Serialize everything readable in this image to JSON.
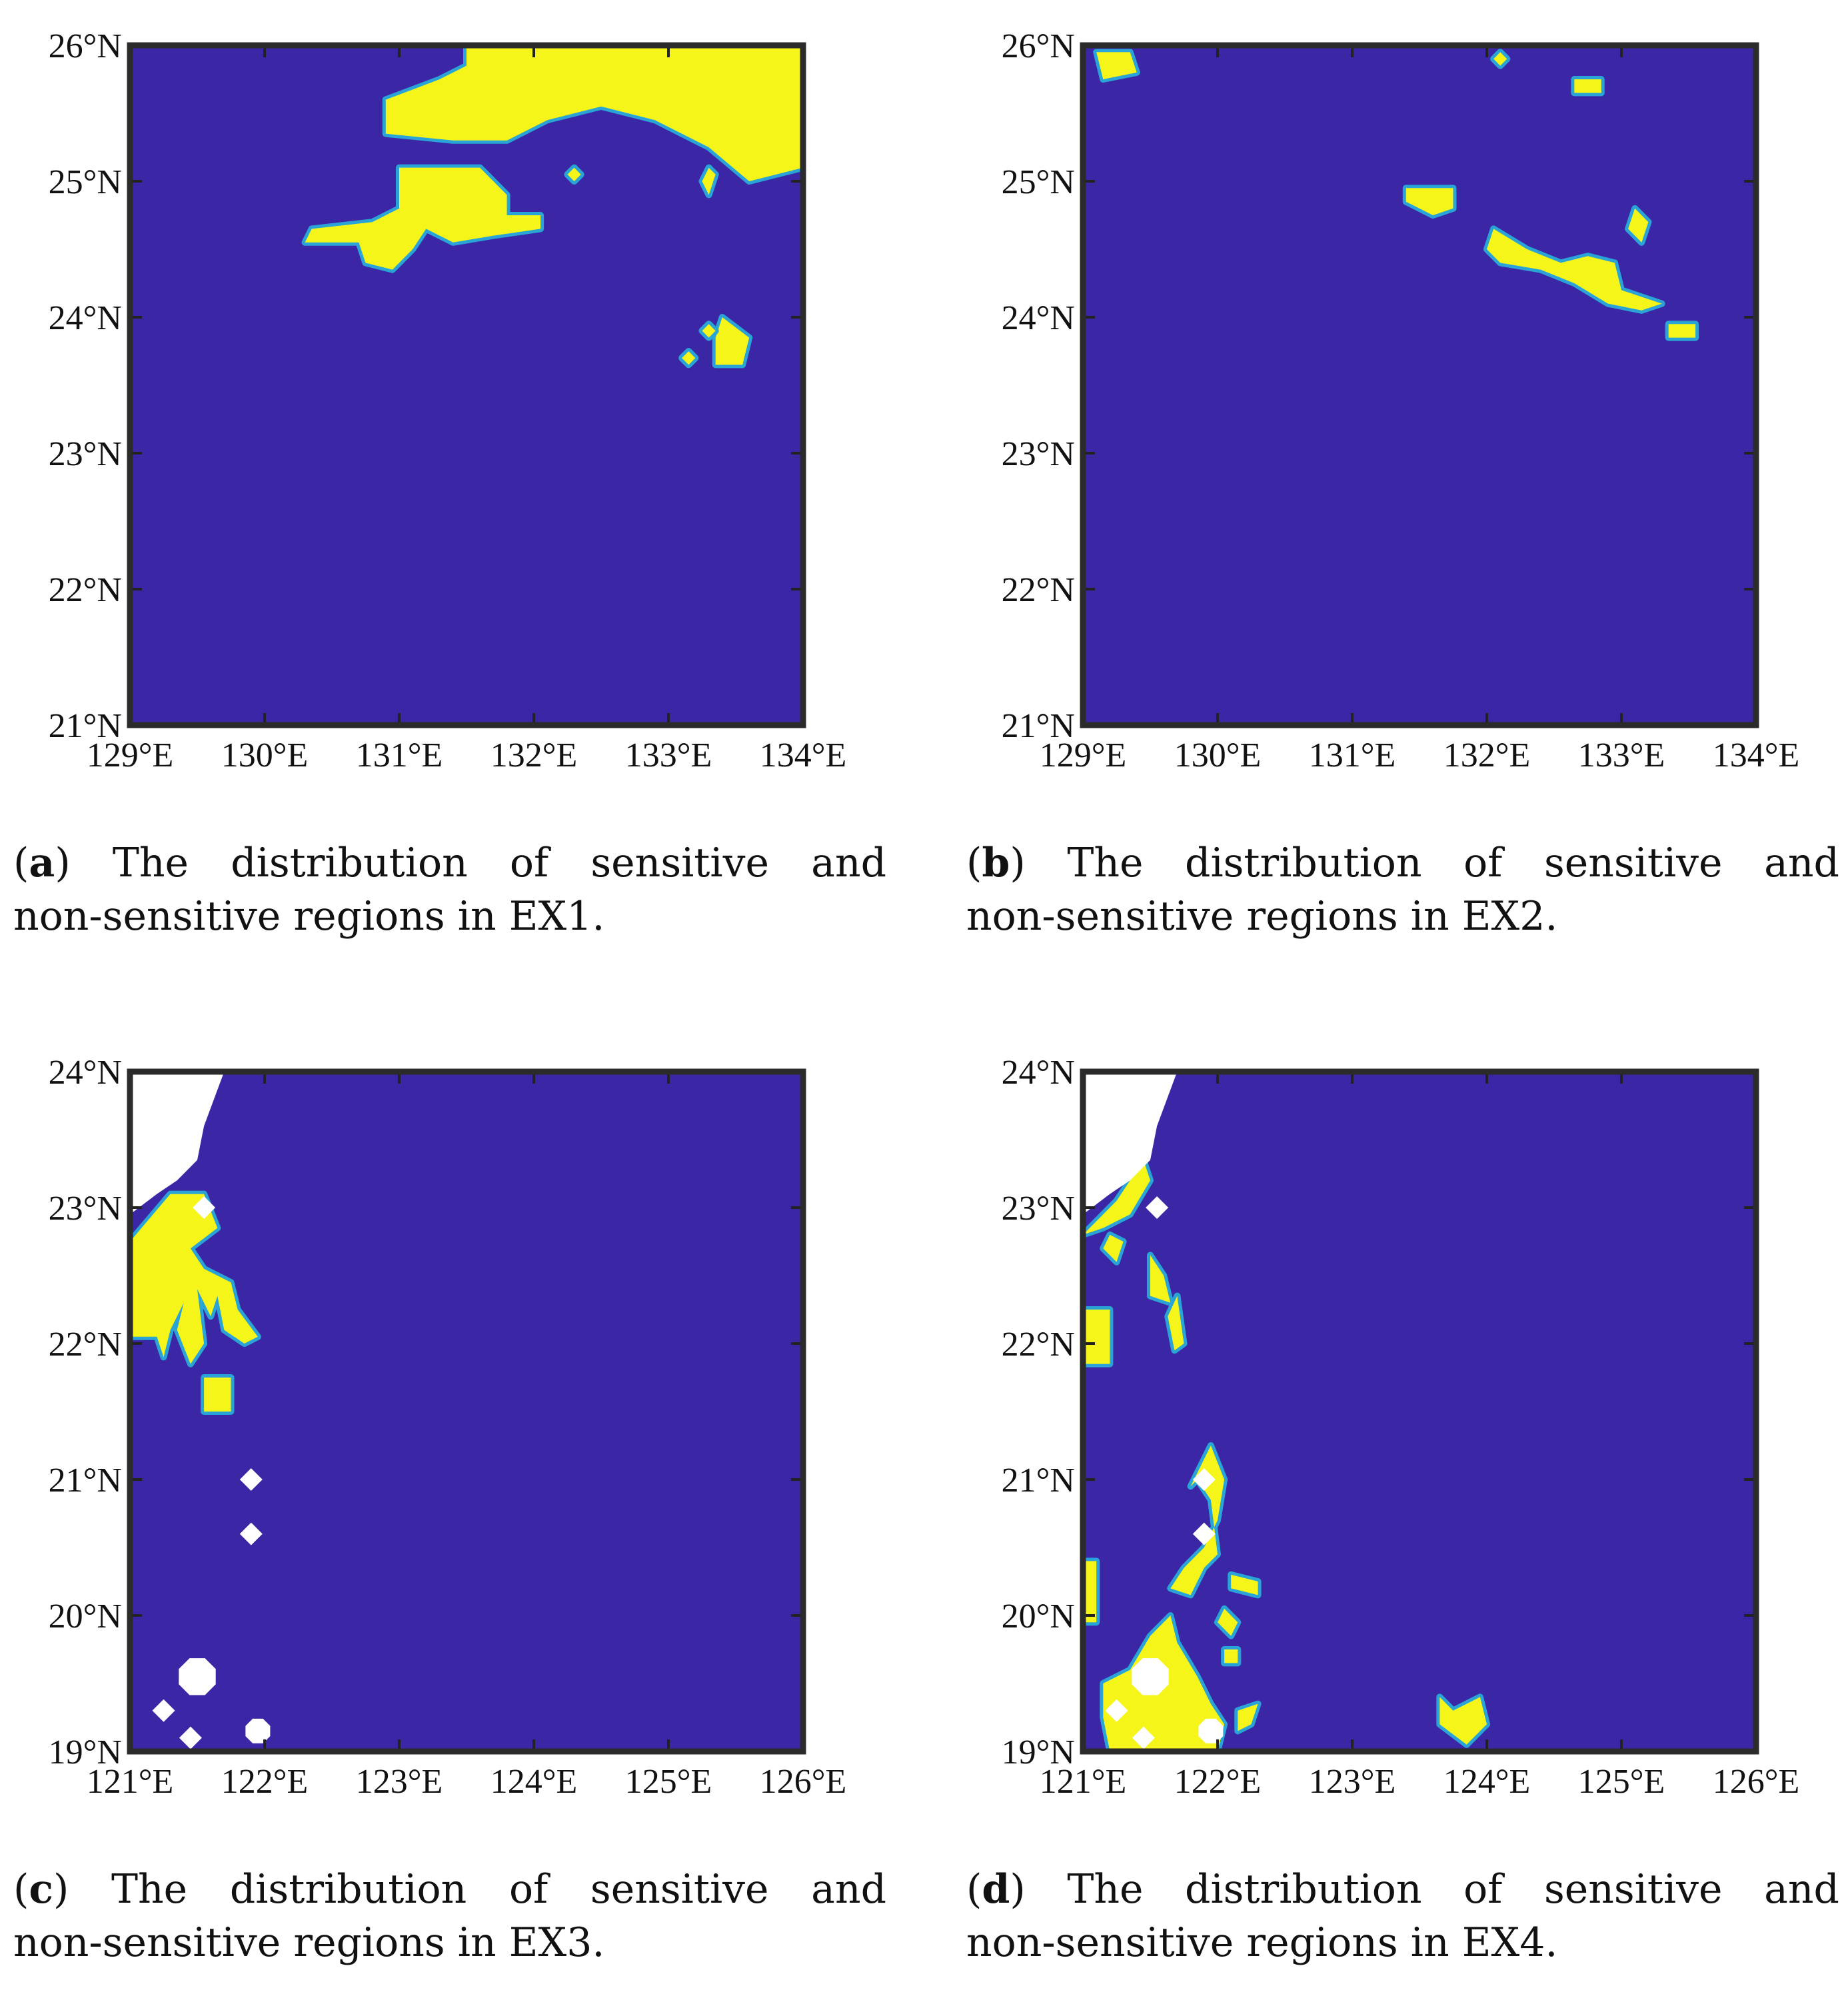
{
  "panels": [
    {
      "id": "a",
      "caption": {
        "tag": "a",
        "words": [
          "The",
          "distribution",
          "of",
          "sensitive",
          "and"
        ],
        "line2": "non-sensitive regions in EX1."
      }
    },
    {
      "id": "b",
      "caption": {
        "tag": "b",
        "words": [
          "The",
          "distribution",
          "of",
          "sensitive",
          "and"
        ],
        "line2": "non-sensitive regions in EX2."
      }
    },
    {
      "id": "c",
      "caption": {
        "tag": "c",
        "words": [
          "The",
          "distribution",
          "of",
          "sensitive",
          "and"
        ],
        "line2": "non-sensitive regions in EX3."
      }
    },
    {
      "id": "d",
      "caption": {
        "tag": "d",
        "words": [
          "The",
          "distribution",
          "of",
          "sensitive",
          "and"
        ],
        "line2": "non-sensitive regions in EX4."
      }
    }
  ],
  "chart_data": [
    {
      "type": "heatmap",
      "panel": "a",
      "xlim": [
        129,
        134
      ],
      "ylim": [
        21,
        26
      ],
      "xticks": [
        "129°E",
        "130°E",
        "131°E",
        "132°E",
        "133°E",
        "134°E"
      ],
      "yticks": [
        "21°N",
        "22°N",
        "23°N",
        "24°N",
        "25°N",
        "26°N"
      ],
      "colors": {
        "non_sensitive": "#3b27a6",
        "sensitive": "#f5f519",
        "edge": "#2aa3d6",
        "land": "#ffffff"
      },
      "sensitive_regions": [
        [
          [
            131.5,
            26.0
          ],
          [
            134.0,
            26.0
          ],
          [
            134.0,
            25.1
          ],
          [
            133.6,
            25.0
          ],
          [
            133.3,
            25.25
          ],
          [
            132.9,
            25.45
          ],
          [
            132.5,
            25.55
          ],
          [
            132.1,
            25.45
          ],
          [
            131.8,
            25.3
          ],
          [
            131.4,
            25.3
          ],
          [
            130.9,
            25.35
          ],
          [
            130.9,
            25.6
          ],
          [
            131.3,
            25.75
          ],
          [
            131.5,
            25.85
          ]
        ],
        [
          [
            131.0,
            25.1
          ],
          [
            131.6,
            25.1
          ],
          [
            131.8,
            24.9
          ],
          [
            131.8,
            24.75
          ],
          [
            132.05,
            24.75
          ],
          [
            132.05,
            24.65
          ],
          [
            131.7,
            24.6
          ],
          [
            131.4,
            24.55
          ],
          [
            131.2,
            24.65
          ],
          [
            131.1,
            24.5
          ],
          [
            130.95,
            24.35
          ],
          [
            130.75,
            24.4
          ],
          [
            130.7,
            24.55
          ],
          [
            130.3,
            24.55
          ],
          [
            130.35,
            24.65
          ],
          [
            130.8,
            24.7
          ],
          [
            131.0,
            24.8
          ]
        ],
        [
          [
            132.3,
            25.1
          ],
          [
            132.35,
            25.05
          ],
          [
            132.3,
            25.0
          ],
          [
            132.25,
            25.05
          ]
        ],
        [
          [
            133.4,
            24.0
          ],
          [
            133.6,
            23.85
          ],
          [
            133.55,
            23.65
          ],
          [
            133.35,
            23.65
          ],
          [
            133.35,
            23.85
          ]
        ],
        [
          [
            133.3,
            23.95
          ],
          [
            133.35,
            23.9
          ],
          [
            133.3,
            23.85
          ],
          [
            133.25,
            23.9
          ]
        ],
        [
          [
            133.15,
            23.75
          ],
          [
            133.2,
            23.7
          ],
          [
            133.15,
            23.65
          ],
          [
            133.1,
            23.7
          ]
        ],
        [
          [
            133.3,
            25.1
          ],
          [
            133.35,
            25.05
          ],
          [
            133.3,
            24.9
          ],
          [
            133.25,
            25.0
          ]
        ]
      ],
      "land_regions": [],
      "markers": []
    },
    {
      "type": "heatmap",
      "panel": "b",
      "xlim": [
        129,
        134
      ],
      "ylim": [
        21,
        26
      ],
      "xticks": [
        "129°E",
        "130°E",
        "131°E",
        "132°E",
        "133°E",
        "134°E"
      ],
      "yticks": [
        "21°N",
        "22°N",
        "23°N",
        "24°N",
        "25°N",
        "26°N"
      ],
      "colors": {
        "non_sensitive": "#3b27a6",
        "sensitive": "#f5f519",
        "edge": "#2aa3d6",
        "land": "#ffffff"
      },
      "sensitive_regions": [
        [
          [
            129.1,
            25.95
          ],
          [
            129.35,
            25.95
          ],
          [
            129.4,
            25.8
          ],
          [
            129.15,
            25.75
          ]
        ],
        [
          [
            132.1,
            25.95
          ],
          [
            132.15,
            25.9
          ],
          [
            132.1,
            25.85
          ],
          [
            132.05,
            25.9
          ]
        ],
        [
          [
            132.65,
            25.75
          ],
          [
            132.85,
            25.75
          ],
          [
            132.85,
            25.65
          ],
          [
            132.65,
            25.65
          ]
        ],
        [
          [
            131.4,
            24.95
          ],
          [
            131.75,
            24.95
          ],
          [
            131.75,
            24.8
          ],
          [
            131.6,
            24.75
          ],
          [
            131.4,
            24.85
          ]
        ],
        [
          [
            132.05,
            24.65
          ],
          [
            132.3,
            24.5
          ],
          [
            132.55,
            24.4
          ],
          [
            132.75,
            24.45
          ],
          [
            132.95,
            24.4
          ],
          [
            133.0,
            24.2
          ],
          [
            133.3,
            24.1
          ],
          [
            133.15,
            24.05
          ],
          [
            132.9,
            24.1
          ],
          [
            132.65,
            24.25
          ],
          [
            132.4,
            24.35
          ],
          [
            132.1,
            24.4
          ],
          [
            132.0,
            24.5
          ]
        ],
        [
          [
            133.1,
            24.8
          ],
          [
            133.2,
            24.7
          ],
          [
            133.15,
            24.55
          ],
          [
            133.05,
            24.65
          ]
        ],
        [
          [
            133.35,
            23.95
          ],
          [
            133.55,
            23.95
          ],
          [
            133.55,
            23.85
          ],
          [
            133.35,
            23.85
          ]
        ]
      ],
      "land_regions": [],
      "markers": []
    },
    {
      "type": "heatmap",
      "panel": "c",
      "xlim": [
        121,
        126
      ],
      "ylim": [
        19,
        24
      ],
      "xticks": [
        "121°E",
        "122°E",
        "123°E",
        "124°E",
        "125°E",
        "126°E"
      ],
      "yticks": [
        "19°N",
        "20°N",
        "21°N",
        "22°N",
        "23°N",
        "24°N"
      ],
      "colors": {
        "non_sensitive": "#3b27a6",
        "sensitive": "#f5f519",
        "edge": "#2aa3d6",
        "land": "#ffffff"
      },
      "sensitive_regions": [
        [
          [
            121.0,
            22.75
          ],
          [
            121.3,
            23.1
          ],
          [
            121.55,
            23.1
          ],
          [
            121.65,
            22.85
          ],
          [
            121.45,
            22.7
          ],
          [
            121.55,
            22.55
          ],
          [
            121.75,
            22.45
          ],
          [
            121.8,
            22.25
          ],
          [
            121.95,
            22.05
          ],
          [
            121.85,
            22.0
          ],
          [
            121.7,
            22.1
          ],
          [
            121.65,
            22.35
          ],
          [
            121.6,
            22.2
          ],
          [
            121.5,
            22.4
          ],
          [
            121.55,
            22.0
          ],
          [
            121.45,
            21.85
          ],
          [
            121.35,
            22.1
          ],
          [
            121.4,
            22.3
          ],
          [
            121.3,
            22.1
          ],
          [
            121.25,
            21.9
          ],
          [
            121.2,
            22.05
          ],
          [
            121.0,
            22.05
          ]
        ],
        [
          [
            121.55,
            21.75
          ],
          [
            121.75,
            21.75
          ],
          [
            121.75,
            21.5
          ],
          [
            121.55,
            21.5
          ]
        ]
      ],
      "land_regions": [
        [
          [
            121.0,
            24.0
          ],
          [
            121.7,
            24.0
          ],
          [
            121.55,
            23.6
          ],
          [
            121.5,
            23.35
          ],
          [
            121.35,
            23.2
          ],
          [
            121.2,
            23.1
          ],
          [
            121.0,
            22.95
          ]
        ]
      ],
      "markers": [
        {
          "lon": 121.55,
          "lat": 23.0,
          "shape": "diamond",
          "size": "small"
        },
        {
          "lon": 121.9,
          "lat": 21.0,
          "shape": "diamond",
          "size": "small"
        },
        {
          "lon": 121.9,
          "lat": 20.6,
          "shape": "diamond",
          "size": "small"
        },
        {
          "lon": 121.5,
          "lat": 19.55,
          "shape": "octagon",
          "size": "large"
        },
        {
          "lon": 121.25,
          "lat": 19.3,
          "shape": "diamond",
          "size": "small"
        },
        {
          "lon": 121.45,
          "lat": 19.1,
          "shape": "diamond",
          "size": "small"
        },
        {
          "lon": 121.95,
          "lat": 19.15,
          "shape": "octagon",
          "size": "medium"
        }
      ]
    },
    {
      "type": "heatmap",
      "panel": "d",
      "xlim": [
        121,
        126
      ],
      "ylim": [
        19,
        24
      ],
      "xticks": [
        "121°E",
        "122°E",
        "123°E",
        "124°E",
        "125°E",
        "126°E"
      ],
      "yticks": [
        "19°N",
        "20°N",
        "21°N",
        "22°N",
        "23°N",
        "24°N"
      ],
      "colors": {
        "non_sensitive": "#3b27a6",
        "sensitive": "#f5f519",
        "edge": "#2aa3d6",
        "land": "#ffffff"
      },
      "sensitive_regions": [
        [
          [
            121.0,
            22.8
          ],
          [
            121.25,
            23.05
          ],
          [
            121.45,
            23.35
          ],
          [
            121.5,
            23.2
          ],
          [
            121.35,
            22.95
          ],
          [
            121.15,
            22.85
          ]
        ],
        [
          [
            121.2,
            22.8
          ],
          [
            121.3,
            22.75
          ],
          [
            121.25,
            22.6
          ],
          [
            121.15,
            22.7
          ]
        ],
        [
          [
            121.5,
            22.65
          ],
          [
            121.6,
            22.5
          ],
          [
            121.65,
            22.3
          ],
          [
            121.5,
            22.35
          ]
        ],
        [
          [
            121.7,
            22.35
          ],
          [
            121.75,
            22.0
          ],
          [
            121.68,
            21.95
          ],
          [
            121.63,
            22.2
          ]
        ],
        [
          [
            121.0,
            22.25
          ],
          [
            121.2,
            22.25
          ],
          [
            121.2,
            21.85
          ],
          [
            121.0,
            21.85
          ]
        ],
        [
          [
            121.95,
            21.25
          ],
          [
            122.05,
            21.0
          ],
          [
            122.0,
            20.7
          ],
          [
            121.9,
            20.5
          ],
          [
            121.75,
            20.35
          ],
          [
            121.65,
            20.2
          ],
          [
            121.8,
            20.15
          ],
          [
            121.9,
            20.35
          ],
          [
            122.0,
            20.45
          ],
          [
            121.95,
            20.85
          ],
          [
            121.85,
            21.0
          ],
          [
            121.8,
            20.95
          ]
        ],
        [
          [
            122.1,
            20.3
          ],
          [
            122.3,
            20.25
          ],
          [
            122.3,
            20.15
          ],
          [
            122.1,
            20.2
          ]
        ],
        [
          [
            122.05,
            20.05
          ],
          [
            122.15,
            19.95
          ],
          [
            122.1,
            19.85
          ],
          [
            122.0,
            19.95
          ]
        ],
        [
          [
            122.05,
            19.75
          ],
          [
            122.15,
            19.75
          ],
          [
            122.15,
            19.65
          ],
          [
            122.05,
            19.65
          ]
        ],
        [
          [
            121.0,
            20.4
          ],
          [
            121.1,
            20.4
          ],
          [
            121.1,
            19.95
          ],
          [
            121.0,
            19.95
          ]
        ],
        [
          [
            121.15,
            19.5
          ],
          [
            121.35,
            19.6
          ],
          [
            121.5,
            19.85
          ],
          [
            121.65,
            20.0
          ],
          [
            121.7,
            19.8
          ],
          [
            121.85,
            19.55
          ],
          [
            121.95,
            19.35
          ],
          [
            122.05,
            19.2
          ],
          [
            122.0,
            19.0
          ],
          [
            121.2,
            19.0
          ],
          [
            121.15,
            19.25
          ]
        ],
        [
          [
            122.15,
            19.3
          ],
          [
            122.3,
            19.35
          ],
          [
            122.25,
            19.2
          ],
          [
            122.15,
            19.15
          ]
        ],
        [
          [
            123.65,
            19.4
          ],
          [
            123.75,
            19.3
          ],
          [
            123.85,
            19.35
          ],
          [
            123.95,
            19.4
          ],
          [
            124.0,
            19.2
          ],
          [
            123.85,
            19.05
          ],
          [
            123.65,
            19.2
          ]
        ]
      ],
      "land_regions": [
        [
          [
            121.0,
            24.0
          ],
          [
            121.7,
            24.0
          ],
          [
            121.55,
            23.6
          ],
          [
            121.5,
            23.35
          ],
          [
            121.35,
            23.2
          ],
          [
            121.2,
            23.1
          ],
          [
            121.0,
            22.95
          ]
        ]
      ],
      "markers": [
        {
          "lon": 121.55,
          "lat": 23.0,
          "shape": "diamond",
          "size": "small"
        },
        {
          "lon": 121.9,
          "lat": 21.0,
          "shape": "diamond",
          "size": "small"
        },
        {
          "lon": 121.9,
          "lat": 20.6,
          "shape": "diamond",
          "size": "small"
        },
        {
          "lon": 121.5,
          "lat": 19.55,
          "shape": "octagon",
          "size": "large"
        },
        {
          "lon": 121.25,
          "lat": 19.3,
          "shape": "diamond",
          "size": "small"
        },
        {
          "lon": 121.45,
          "lat": 19.1,
          "shape": "diamond",
          "size": "small"
        },
        {
          "lon": 121.95,
          "lat": 19.15,
          "shape": "octagon",
          "size": "medium"
        }
      ]
    }
  ]
}
